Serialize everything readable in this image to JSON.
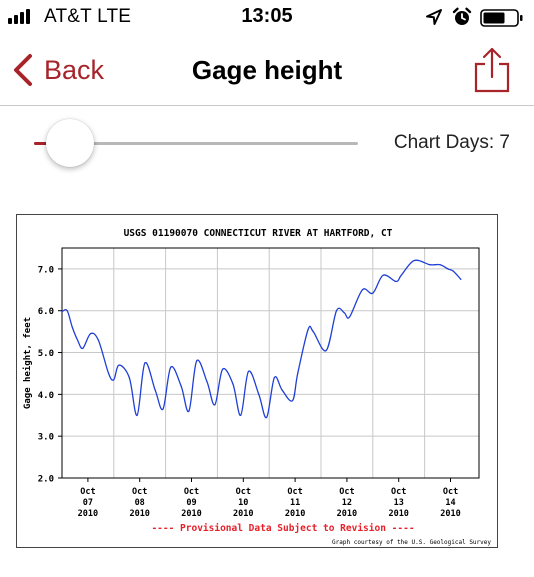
{
  "status_bar": {
    "carrier": "AT&T  LTE",
    "time": "13:05",
    "icons": [
      "signal-icon",
      "location-arrow-icon",
      "alarm-clock-icon",
      "battery-icon"
    ]
  },
  "nav": {
    "back_label": "Back",
    "title": "Gage height",
    "share_icon": "share-icon"
  },
  "slider": {
    "value_fraction": 0.05,
    "label": "Chart Days: 7"
  },
  "colors": {
    "accent": "#a6242a",
    "series": "#1f3fd6",
    "grid": "#c8c8c8",
    "disclaimer": "#e8202a"
  },
  "chart_data": {
    "type": "line",
    "title": "USGS 01190070 CONNECTICUT RIVER AT HARTFORD, CT",
    "ylabel": "Gage height, feet",
    "xlabel": "",
    "ylim": [
      2.0,
      7.5
    ],
    "xlim": [
      0,
      8.05
    ],
    "yticks": [
      "7.0",
      "6.0",
      "5.0",
      "4.0",
      "3.0",
      "2.0"
    ],
    "ytick_values": [
      7.0,
      6.0,
      5.0,
      4.0,
      3.0,
      2.0
    ],
    "xticks": [
      {
        "value": 0.5,
        "month": "Oct",
        "day": "07",
        "year": "2010"
      },
      {
        "value": 1.5,
        "month": "Oct",
        "day": "08",
        "year": "2010"
      },
      {
        "value": 2.5,
        "month": "Oct",
        "day": "09",
        "year": "2010"
      },
      {
        "value": 3.5,
        "month": "Oct",
        "day": "10",
        "year": "2010"
      },
      {
        "value": 4.5,
        "month": "Oct",
        "day": "11",
        "year": "2010"
      },
      {
        "value": 5.5,
        "month": "Oct",
        "day": "12",
        "year": "2010"
      },
      {
        "value": 6.5,
        "month": "Oct",
        "day": "13",
        "year": "2010"
      },
      {
        "value": 7.5,
        "month": "Oct",
        "day": "14",
        "year": "2010"
      }
    ],
    "grid": true,
    "disclaimer": "---- Provisional Data Subject to Revision ----",
    "credit": "Graph courtesy of the U.S. Geological Survey",
    "series": [
      {
        "name": "",
        "x": [
          0,
          0.1,
          0.2,
          0.3,
          0.4,
          0.55,
          0.7,
          0.9,
          1.0,
          1.1,
          1.3,
          1.45,
          1.6,
          1.8,
          1.95,
          2.1,
          2.3,
          2.45,
          2.6,
          2.8,
          2.95,
          3.1,
          3.3,
          3.45,
          3.6,
          3.8,
          3.95,
          4.1,
          4.25,
          4.45,
          4.55,
          4.75,
          4.85,
          5.1,
          5.3,
          5.45,
          5.55,
          5.8,
          6.0,
          6.2,
          6.45,
          6.55,
          6.8,
          7.1,
          7.3,
          7.45,
          7.55,
          7.7
        ],
        "y": [
          5.98,
          6.0,
          5.6,
          5.3,
          5.1,
          5.45,
          5.3,
          4.5,
          4.35,
          4.7,
          4.4,
          3.5,
          4.75,
          4.1,
          3.65,
          4.65,
          4.2,
          3.6,
          4.8,
          4.3,
          3.75,
          4.6,
          4.25,
          3.5,
          4.55,
          4.0,
          3.45,
          4.4,
          4.1,
          3.85,
          4.5,
          5.55,
          5.5,
          5.05,
          6.0,
          5.95,
          5.85,
          6.5,
          6.42,
          6.85,
          6.7,
          6.85,
          7.2,
          7.1,
          7.1,
          7.0,
          6.95,
          6.75
        ]
      }
    ]
  }
}
